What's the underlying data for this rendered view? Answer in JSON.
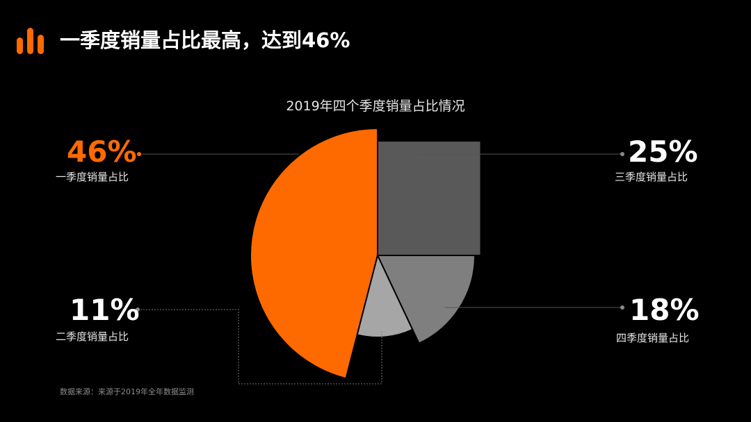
{
  "header": {
    "title": "一季度销量占比最高，达到46%",
    "logo_icon": "bar-chart-icon",
    "accent": "#ff6a00"
  },
  "chart_data": {
    "type": "pie",
    "title": "2019年四个季度销量占比情况",
    "slices": [
      {
        "label": "一季度销量占比",
        "value": 46,
        "display": "46%",
        "color": "#ff6a00"
      },
      {
        "label": "三季度销量占比",
        "value": 25,
        "display": "25%",
        "color": "#595959"
      },
      {
        "label": "四季度销量占比",
        "value": 18,
        "display": "18%",
        "color": "#7f7f7f"
      },
      {
        "label": "二季度销量占比",
        "value": 11,
        "display": "11%",
        "color": "#a6a6a6"
      }
    ]
  },
  "footer": {
    "source": "数据来源：来源于2019年全年数据监测"
  }
}
